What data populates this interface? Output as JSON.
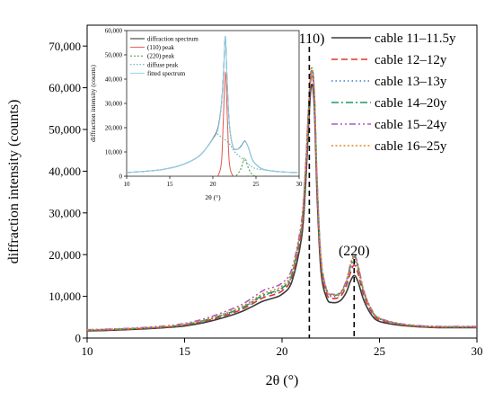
{
  "chart_data": [
    {
      "id": "main",
      "type": "line",
      "xlabel": "2θ (°)",
      "ylabel": "diffraction intensity (counts)",
      "xlim": [
        10,
        30
      ],
      "ylim": [
        0,
        75000
      ],
      "x_ticks": [
        10,
        15,
        20,
        25,
        30
      ],
      "x_tick_labels": [
        "10",
        "15",
        "20",
        "25",
        "30"
      ],
      "y_ticks": [
        0,
        10000,
        20000,
        30000,
        40000,
        50000,
        60000,
        70000
      ],
      "y_tick_labels": [
        "0",
        "10,000",
        "20,000",
        "30,000",
        "40,000",
        "50,000",
        "60,000",
        "70,000"
      ],
      "grid": false,
      "legend_position": "top-right",
      "annotations": [
        {
          "text": "(110)",
          "x": 21.4
        },
        {
          "text": "(220)",
          "x": 23.7
        }
      ],
      "x": [
        10,
        12,
        14,
        15,
        16,
        17,
        18,
        19,
        19.5,
        20,
        20.5,
        21,
        21.2,
        21.35,
        21.5,
        21.65,
        21.8,
        22,
        22.3,
        22.6,
        23,
        23.3,
        23.5,
        23.7,
        23.9,
        24.2,
        24.6,
        25,
        26,
        27,
        28,
        30
      ],
      "series": [
        {
          "name": "cable 11–11.5y",
          "color": "#3a3a3a",
          "dash": "solid",
          "values": [
            1700,
            2000,
            2500,
            2900,
            3700,
            4900,
            6500,
            8800,
            9500,
            10500,
            13500,
            24000,
            36000,
            50000,
            60500,
            56000,
            34000,
            16000,
            9500,
            8500,
            9000,
            11000,
            13500,
            15000,
            13500,
            9000,
            5500,
            4000,
            3100,
            2700,
            2500,
            2500
          ]
        },
        {
          "name": "cable 12–12y",
          "color": "#e8312a",
          "dash": "7,4",
          "values": [
            1800,
            2100,
            2600,
            3100,
            4000,
            5300,
            7000,
            9600,
            10300,
            11300,
            14500,
            25500,
            38000,
            52000,
            63000,
            58000,
            36000,
            17500,
            10500,
            9500,
            10000,
            12500,
            15500,
            17500,
            15500,
            10200,
            6200,
            4400,
            3300,
            2800,
            2600,
            2600
          ]
        },
        {
          "name": "cable 13–13y",
          "color": "#3b7fc4",
          "dash": "1.5,3",
          "values": [
            1900,
            2200,
            2700,
            3200,
            4100,
            5500,
            7300,
            10000,
            10800,
            11800,
            15000,
            26500,
            39000,
            53000,
            64000,
            59000,
            37000,
            18500,
            11000,
            10000,
            10500,
            13000,
            16500,
            18500,
            16500,
            10800,
            6500,
            4600,
            3400,
            2900,
            2700,
            2700
          ]
        },
        {
          "name": "cable 14–20y",
          "color": "#1a9a5e",
          "dash": "8,3,2,3",
          "values": [
            1900,
            2200,
            2700,
            3200,
            4200,
            5600,
            7400,
            10200,
            11000,
            12000,
            15200,
            27000,
            40000,
            54000,
            64500,
            59500,
            37500,
            19000,
            11300,
            10300,
            10800,
            13500,
            17000,
            19500,
            17000,
            11000,
            6600,
            4700,
            3400,
            2900,
            2700,
            2700
          ]
        },
        {
          "name": "cable 15–24y",
          "color": "#a85cc8",
          "dash": "7,3,2,3,2,3",
          "values": [
            2000,
            2300,
            2900,
            3500,
            4600,
            6200,
            8200,
            11300,
            12100,
            13200,
            16500,
            28000,
            40500,
            54000,
            64000,
            59000,
            37000,
            19000,
            11500,
            10500,
            11000,
            13800,
            17500,
            20000,
            17500,
            11300,
            6800,
            4800,
            3500,
            3000,
            2800,
            2800
          ]
        },
        {
          "name": "cable 16–25y",
          "color": "#e3891c",
          "dash": "2,2.5",
          "values": [
            1950,
            2250,
            2800,
            3300,
            4300,
            5800,
            7700,
            10600,
            11400,
            12500,
            15800,
            27500,
            40000,
            54000,
            64500,
            59500,
            37500,
            19000,
            11300,
            10300,
            10800,
            13500,
            17200,
            19500,
            17200,
            11200,
            6700,
            4700,
            3400,
            2900,
            2700,
            2700
          ]
        }
      ]
    },
    {
      "id": "inset",
      "type": "line",
      "xlabel": "2θ (°)",
      "ylabel": "diffraction intensity (counts)",
      "xlim": [
        10,
        30
      ],
      "ylim": [
        0,
        60000
      ],
      "x_ticks": [
        10,
        15,
        20,
        25,
        30
      ],
      "x_tick_labels": [
        "10",
        "15",
        "20",
        "25",
        "30"
      ],
      "y_ticks": [
        0,
        10000,
        20000,
        30000,
        40000,
        50000,
        60000
      ],
      "y_tick_labels": [
        "0",
        "10,000",
        "20,000",
        "30,000",
        "40,000",
        "50,000",
        "60,000"
      ],
      "legend_position": "top-left",
      "series": [
        {
          "name": "diffraction spectrum",
          "color": "#2b2b2b",
          "dash": "solid",
          "x": [
            10,
            12,
            14,
            16,
            18,
            19,
            20,
            20.6,
            21,
            21.25,
            21.45,
            21.65,
            21.9,
            22.3,
            22.8,
            23.3,
            23.7,
            24.1,
            24.6,
            25.2,
            26,
            28,
            30
          ],
          "values": [
            1500,
            2000,
            2700,
            4200,
            7300,
            10500,
            15500,
            20000,
            30000,
            44000,
            57500,
            40000,
            22000,
            12500,
            11000,
            12500,
            14500,
            12000,
            6700,
            4200,
            2700,
            1800,
            1500
          ]
        },
        {
          "name": "(110)  peak",
          "color": "#e05a4e",
          "dash": "solid",
          "x": [
            20,
            20.6,
            21,
            21.2,
            21.45,
            21.7,
            21.9,
            22.3,
            23
          ],
          "values": [
            0,
            300,
            6000,
            22000,
            43000,
            22000,
            6000,
            300,
            0
          ]
        },
        {
          "name": "(220)  peak",
          "color": "#3a9a3a",
          "dash": "2,2",
          "x": [
            22.3,
            22.8,
            23.3,
            23.7,
            24.1,
            24.6,
            25.2
          ],
          "values": [
            0,
            500,
            3500,
            7500,
            3500,
            500,
            0
          ]
        },
        {
          "name": "diffuse peak",
          "color": "#4ea0a8",
          "dash": "1.5,2",
          "x": [
            10,
            12,
            14,
            16,
            18,
            19,
            20,
            20.5,
            21,
            21.5,
            22,
            22.5,
            23,
            23.5,
            24,
            24.5,
            25,
            26,
            28,
            30
          ],
          "values": [
            1500,
            2000,
            2700,
            4200,
            7300,
            10500,
            15300,
            17300,
            16000,
            14800,
            13000,
            10200,
            8500,
            7000,
            5300,
            4000,
            3100,
            2600,
            1800,
            1500
          ]
        },
        {
          "name": "fitted spectrum",
          "color": "#8fd3ec",
          "dash": "solid",
          "x": [
            10,
            12,
            14,
            16,
            18,
            19,
            20,
            20.6,
            21,
            21.25,
            21.45,
            21.65,
            21.9,
            22.3,
            22.8,
            23.3,
            23.7,
            24.1,
            24.6,
            25.2,
            26,
            28,
            30
          ],
          "values": [
            1500,
            2000,
            2700,
            4200,
            7300,
            10500,
            15300,
            19500,
            29500,
            43500,
            57500,
            40000,
            22000,
            12500,
            11000,
            12300,
            14300,
            12000,
            6700,
            4200,
            2700,
            1800,
            1500
          ]
        }
      ]
    }
  ]
}
